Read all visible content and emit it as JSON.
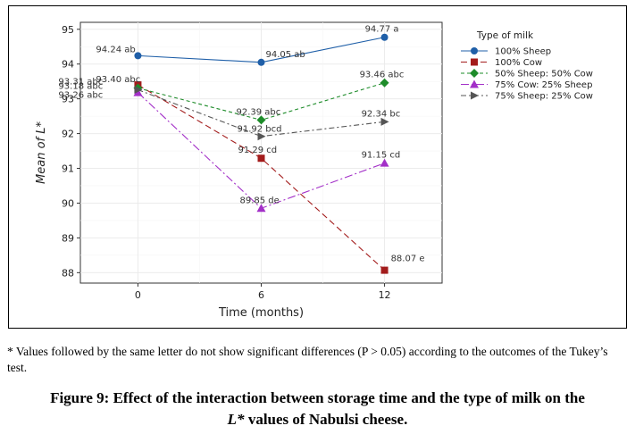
{
  "chart_data": {
    "type": "line",
    "xlabel": "Time (months)",
    "ylabel": "Mean of L*",
    "x": [
      0,
      6,
      12
    ],
    "xticks": [
      "0",
      "6",
      "12"
    ],
    "ylim": [
      87.7,
      95.2
    ],
    "yticks": [
      88,
      89,
      90,
      91,
      92,
      93,
      94,
      95
    ],
    "grid": true,
    "legend_title": "Type of milk",
    "legend_position": "right",
    "series": [
      {
        "name": "100% Sheep",
        "values": [
          94.24,
          94.05,
          94.77
        ],
        "labels": [
          "94.24 ab",
          "94.05 ab",
          "94.77 a"
        ],
        "color": "#1f5fa8",
        "dash": "solid",
        "marker": "circle"
      },
      {
        "name": "100% Cow",
        "values": [
          93.4,
          91.29,
          88.07
        ],
        "labels": [
          "93.40 abc",
          "91.29 cd",
          "88.07 e"
        ],
        "color": "#a31c1c",
        "dash": "long",
        "marker": "square"
      },
      {
        "name": "50% Sheep: 50% Cow",
        "values": [
          93.31,
          92.39,
          93.46
        ],
        "labels": [
          "93.31 abc",
          "92.39 abc",
          "93.46 abc"
        ],
        "color": "#1e8c2a",
        "dash": "short",
        "marker": "diamond"
      },
      {
        "name": "75% Cow: 25% Sheep",
        "values": [
          93.18,
          89.85,
          91.15
        ],
        "labels": [
          "93.18 abc",
          "89.85 de",
          "91.15 cd"
        ],
        "color": "#a330c8",
        "dash": "dashdot",
        "marker": "triangle"
      },
      {
        "name": "75% Sheep: 25% Cow",
        "values": [
          93.26,
          91.92,
          92.34
        ],
        "labels": [
          "93.26 abc",
          "91.92 bcd",
          "92.34 bc"
        ],
        "color": "#555555",
        "dash": "dashdot2",
        "marker": "arrow"
      }
    ]
  },
  "footnote": "* Values followed by the same letter do not show significant differences (P > 0.05) according to the outcomes of the Tukey’s test.",
  "caption": {
    "line1": "Figure 9: Effect of the interaction between storage time and the type of milk on the",
    "line2_symbol": "L*",
    "line2_rest": " values of Nabulsi cheese."
  }
}
